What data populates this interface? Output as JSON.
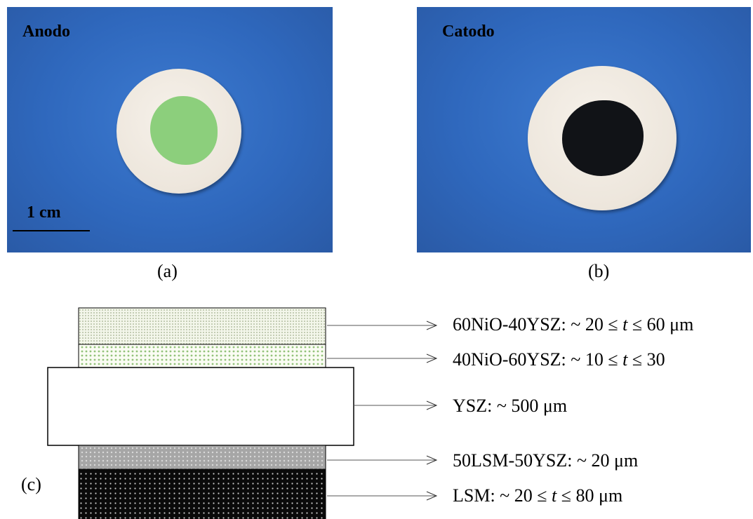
{
  "panel_a": {
    "label": "Anodo",
    "scale_bar": "1 cm",
    "caption": "(a)",
    "electrode_color": "#8ccf7c"
  },
  "panel_b": {
    "label": "Catodo",
    "caption": "(b)",
    "electrode_color": "#111317"
  },
  "panel_c": {
    "caption": "(c)",
    "layers": [
      {
        "prefix": "60NiO-40YSZ: ~ 20 ≤ ",
        "var": "t",
        "suffix": " ≤ 60 μm",
        "pattern": "fine-green"
      },
      {
        "prefix": "40NiO-60YSZ:  ~  10  ≤  ",
        "var": "t",
        "suffix": "  ≤  30",
        "pattern": "green-dots"
      },
      {
        "prefix": "YSZ: ~ 500 μm",
        "var": "",
        "suffix": "",
        "pattern": "white"
      },
      {
        "prefix": "50LSM-50YSZ: ~ 20 μm",
        "var": "",
        "suffix": "",
        "pattern": "grey-dots"
      },
      {
        "prefix": "LSM: ~ 20 ≤ ",
        "var": "t",
        "suffix": " ≤ 80 μm",
        "pattern": "black-dots"
      }
    ]
  },
  "colors": {
    "background_blue": "#2f68bd",
    "ceramic": "#ede6dc"
  }
}
